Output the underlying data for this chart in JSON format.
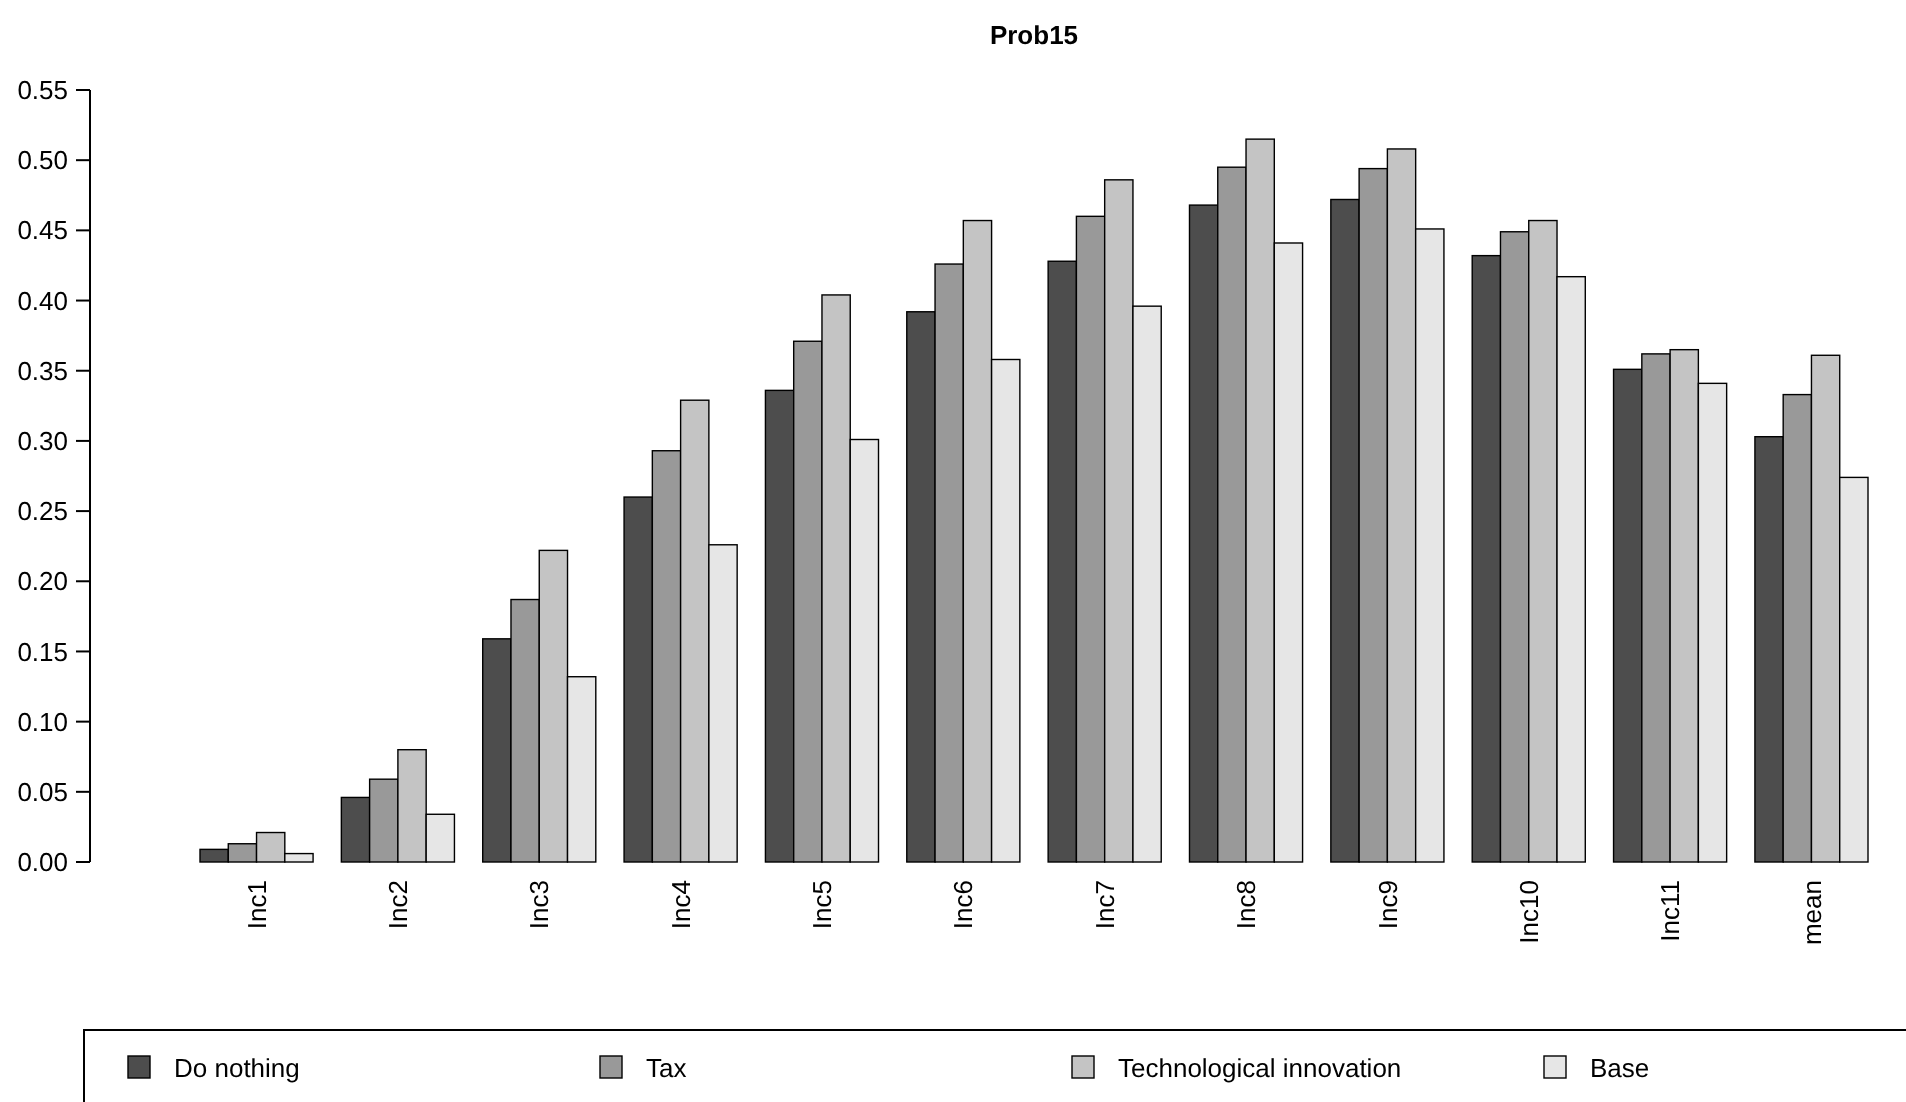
{
  "chart_data": {
    "type": "bar",
    "title": "Prob15",
    "categories": [
      "Inc1",
      "Inc2",
      "Inc3",
      "Inc4",
      "Inc5",
      "Inc6",
      "Inc7",
      "Inc8",
      "Inc9",
      "Inc10",
      "Inc11",
      "mean"
    ],
    "series": [
      {
        "name": "Do nothing",
        "color": "#4d4d4d",
        "values": [
          0.009,
          0.046,
          0.159,
          0.26,
          0.336,
          0.392,
          0.428,
          0.468,
          0.472,
          0.432,
          0.351,
          0.303
        ]
      },
      {
        "name": "Tax",
        "color": "#999999",
        "values": [
          0.013,
          0.059,
          0.187,
          0.293,
          0.371,
          0.426,
          0.46,
          0.495,
          0.494,
          0.449,
          0.362,
          0.333
        ]
      },
      {
        "name": "Technological innovation",
        "color": "#c4c4c4",
        "values": [
          0.021,
          0.08,
          0.222,
          0.329,
          0.404,
          0.457,
          0.486,
          0.515,
          0.508,
          0.457,
          0.365,
          0.361
        ]
      },
      {
        "name": "Base",
        "color": "#e6e6e6",
        "values": [
          0.006,
          0.034,
          0.132,
          0.226,
          0.301,
          0.358,
          0.396,
          0.441,
          0.451,
          0.417,
          0.341,
          0.274
        ]
      }
    ],
    "ylim": [
      0,
      0.55
    ],
    "yticks": [
      {
        "value": 0,
        "label": "0.00"
      },
      {
        "value": 0.05,
        "label": "0.05"
      },
      {
        "value": 0.1,
        "label": "0.10"
      },
      {
        "value": 0.15,
        "label": "0.15"
      },
      {
        "value": 0.2,
        "label": "0.20"
      },
      {
        "value": 0.25,
        "label": "0.25"
      },
      {
        "value": 0.3,
        "label": "0.30"
      },
      {
        "value": 0.35,
        "label": "0.35"
      },
      {
        "value": 0.4,
        "label": "0.40"
      },
      {
        "value": 0.45,
        "label": "0.45"
      },
      {
        "value": 0.5,
        "label": "0.50"
      },
      {
        "value": 0.55,
        "label": "0.55"
      }
    ],
    "grid": false,
    "legend": "bottom"
  }
}
